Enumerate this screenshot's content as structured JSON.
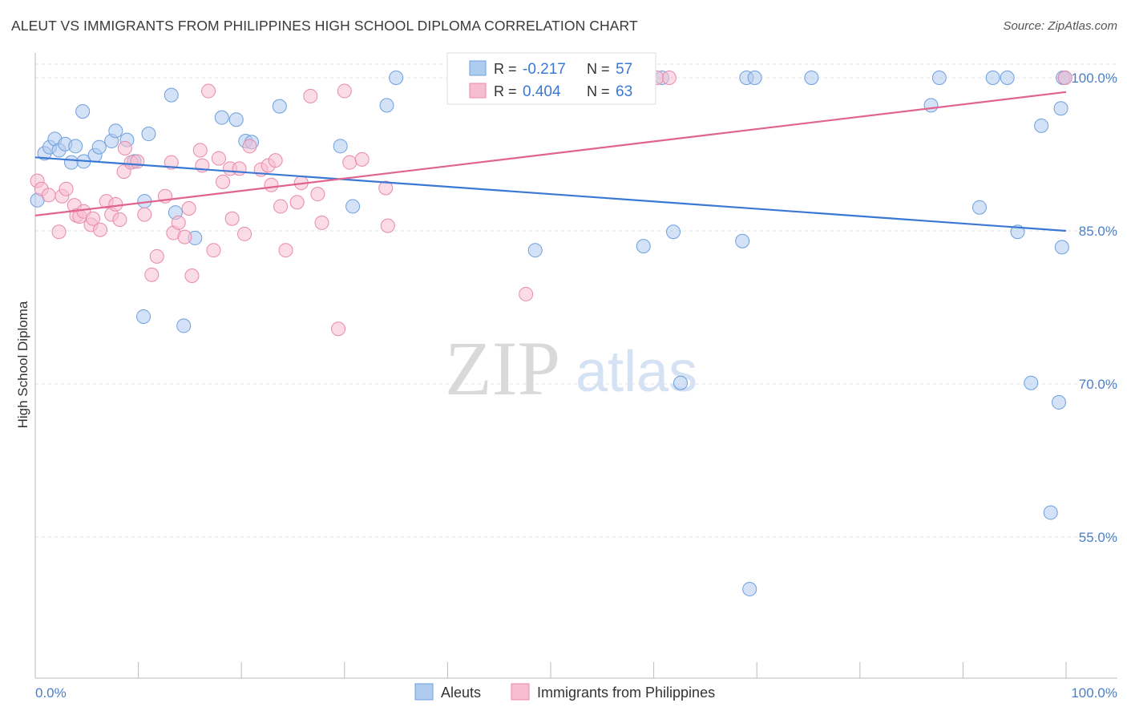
{
  "title": "ALEUT VS IMMIGRANTS FROM PHILIPPINES HIGH SCHOOL DIPLOMA CORRELATION CHART",
  "source": "Source: ZipAtlas.com",
  "watermark": {
    "zip": "ZIP",
    "atlas": "atlas"
  },
  "legend_box": {
    "rows": [
      {
        "r_label": "R = ",
        "r_value": "-0.217",
        "n_label": "N = ",
        "n_value": "57"
      },
      {
        "r_label": "R = ",
        "r_value": "0.404",
        "n_label": "N = ",
        "n_value": "63"
      }
    ]
  },
  "chart_data": {
    "type": "scatter",
    "title": "ALEUT VS IMMIGRANTS FROM PHILIPPINES HIGH SCHOOL DIPLOMA CORRELATION CHART",
    "xlabel": "",
    "ylabel": "High School Diploma",
    "xlim": [
      0,
      100
    ],
    "ylim": [
      40,
      105
    ],
    "x_tick_labels": [
      "0.0%",
      "100.0%"
    ],
    "y_ticks": [
      55,
      70,
      85,
      100
    ],
    "y_tick_labels": [
      "55.0%",
      "70.0%",
      "85.0%",
      "100.0%"
    ],
    "grid": "horizontal dashed",
    "legend_position": "bottom",
    "series": [
      {
        "name": "Aleuts",
        "color": "#aecbf0",
        "edge": "#6f9fdc",
        "line_color": "#3a78d4",
        "trend": {
          "x": [
            0,
            100
          ],
          "y": [
            92.2,
            85.0
          ]
        },
        "points": [
          [
            0.2,
            88.0
          ],
          [
            0.9,
            92.6
          ],
          [
            1.4,
            93.2
          ],
          [
            1.9,
            94.0
          ],
          [
            2.3,
            92.9
          ],
          [
            2.9,
            93.5
          ],
          [
            3.5,
            91.7
          ],
          [
            3.9,
            93.3
          ],
          [
            4.6,
            96.7
          ],
          [
            4.7,
            91.8
          ],
          [
            5.8,
            92.4
          ],
          [
            6.2,
            93.2
          ],
          [
            7.4,
            93.8
          ],
          [
            7.8,
            94.8
          ],
          [
            8.9,
            93.9
          ],
          [
            9.6,
            91.8
          ],
          [
            10.5,
            76.6
          ],
          [
            10.6,
            87.9
          ],
          [
            11.0,
            94.5
          ],
          [
            13.2,
            98.3
          ],
          [
            13.6,
            86.8
          ],
          [
            14.4,
            75.7
          ],
          [
            15.5,
            84.3
          ],
          [
            18.1,
            96.1
          ],
          [
            19.5,
            95.9
          ],
          [
            20.4,
            93.8
          ],
          [
            21.0,
            93.7
          ],
          [
            23.7,
            97.2
          ],
          [
            29.6,
            93.3
          ],
          [
            30.8,
            87.4
          ],
          [
            34.1,
            97.3
          ],
          [
            35.0,
            100.0
          ],
          [
            48.5,
            83.1
          ],
          [
            52.5,
            100.0
          ],
          [
            59.0,
            83.5
          ],
          [
            60.8,
            100.0
          ],
          [
            61.9,
            84.9
          ],
          [
            62.6,
            70.1
          ],
          [
            68.6,
            84.0
          ],
          [
            69.0,
            100.0
          ],
          [
            69.3,
            49.9
          ],
          [
            69.8,
            100.0
          ],
          [
            75.3,
            100.0
          ],
          [
            86.9,
            97.3
          ],
          [
            87.7,
            100.0
          ],
          [
            91.6,
            87.3
          ],
          [
            92.9,
            100.0
          ],
          [
            94.3,
            100.0
          ],
          [
            95.3,
            84.9
          ],
          [
            96.6,
            70.1
          ],
          [
            97.6,
            95.3
          ],
          [
            98.5,
            57.4
          ],
          [
            99.3,
            68.2
          ],
          [
            99.5,
            97.0
          ],
          [
            99.6,
            83.4
          ],
          [
            99.7,
            100.0
          ],
          [
            99.9,
            100.0
          ]
        ]
      },
      {
        "name": "Immigrants from Philippines",
        "color": "#f7bdd0",
        "edge": "#e88aaa",
        "line_color": "#e0648f",
        "trend": {
          "x": [
            0,
            100
          ],
          "y": [
            86.5,
            98.6
          ]
        },
        "points": [
          [
            0.2,
            89.9
          ],
          [
            0.6,
            89.1
          ],
          [
            1.3,
            88.5
          ],
          [
            2.3,
            84.9
          ],
          [
            2.6,
            88.4
          ],
          [
            3.0,
            89.1
          ],
          [
            3.8,
            87.5
          ],
          [
            4.0,
            86.5
          ],
          [
            4.3,
            86.4
          ],
          [
            4.7,
            86.9
          ],
          [
            5.4,
            85.6
          ],
          [
            5.6,
            86.2
          ],
          [
            6.3,
            85.1
          ],
          [
            6.9,
            87.9
          ],
          [
            7.4,
            86.6
          ],
          [
            7.8,
            87.6
          ],
          [
            8.2,
            86.1
          ],
          [
            8.6,
            90.8
          ],
          [
            8.7,
            93.1
          ],
          [
            9.3,
            91.7
          ],
          [
            9.9,
            91.8
          ],
          [
            10.6,
            86.6
          ],
          [
            11.3,
            80.7
          ],
          [
            11.8,
            82.5
          ],
          [
            12.6,
            88.4
          ],
          [
            13.2,
            91.7
          ],
          [
            13.4,
            84.8
          ],
          [
            13.9,
            85.8
          ],
          [
            14.5,
            84.4
          ],
          [
            14.9,
            87.2
          ],
          [
            15.2,
            80.6
          ],
          [
            16.0,
            92.9
          ],
          [
            16.2,
            91.4
          ],
          [
            16.8,
            98.7
          ],
          [
            17.3,
            83.1
          ],
          [
            17.8,
            92.1
          ],
          [
            18.2,
            89.8
          ],
          [
            18.9,
            91.1
          ],
          [
            19.1,
            86.2
          ],
          [
            19.8,
            91.1
          ],
          [
            20.3,
            84.7
          ],
          [
            20.8,
            93.3
          ],
          [
            21.9,
            91.0
          ],
          [
            22.6,
            91.4
          ],
          [
            22.9,
            89.5
          ],
          [
            23.3,
            91.9
          ],
          [
            23.8,
            87.4
          ],
          [
            24.3,
            83.1
          ],
          [
            25.4,
            87.8
          ],
          [
            25.8,
            89.7
          ],
          [
            26.7,
            98.2
          ],
          [
            27.4,
            88.6
          ],
          [
            27.8,
            85.8
          ],
          [
            29.4,
            75.4
          ],
          [
            30.0,
            98.7
          ],
          [
            30.5,
            91.7
          ],
          [
            31.7,
            92.0
          ],
          [
            34.0,
            89.2
          ],
          [
            34.2,
            85.5
          ],
          [
            47.6,
            78.8
          ],
          [
            60.3,
            100.0
          ],
          [
            61.5,
            100.0
          ],
          [
            99.9,
            100.0
          ]
        ]
      }
    ]
  }
}
